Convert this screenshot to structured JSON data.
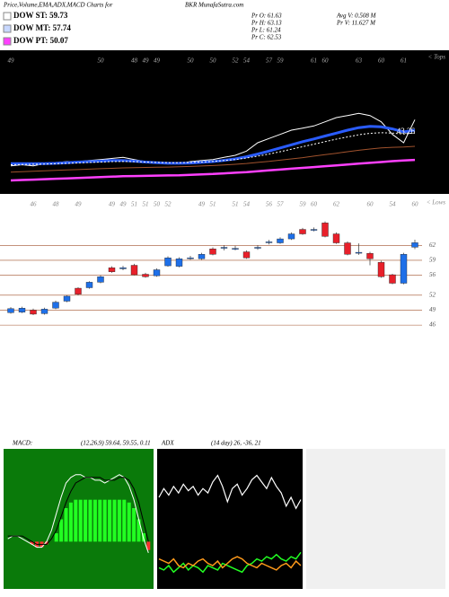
{
  "header": {
    "title": "Price,Volume,EMA,ADX,MACD Charts for",
    "symbol": "BKR MunafaSutra.com",
    "legend": [
      {
        "name": "DOW ST: 59.73",
        "color": "#ffffff"
      },
      {
        "name": "DOW MT: 57.74",
        "color": "#c8d8ff"
      },
      {
        "name": "DOW PT: 50.07",
        "color": "#ff40ff"
      }
    ],
    "stats": [
      "Pr  O: 61.63",
      "Pr  H: 63.13",
      "Pr  L: 61.24",
      "Pr  C: 62.53",
      "Avg V: 0.508  M",
      "Pr  V: 11.627 M"
    ]
  },
  "chart_data": [
    {
      "type": "line",
      "name": "ema-panel",
      "label": "43.26",
      "tops_label": "< Tops",
      "top_labels": [
        "49",
        null,
        null,
        null,
        null,
        null,
        null,
        null,
        "50",
        null,
        null,
        "48",
        "49",
        "49",
        null,
        null,
        "50",
        null,
        "50",
        null,
        "52",
        "54",
        null,
        "57",
        "59",
        null,
        null,
        "61",
        "60",
        null,
        null,
        "63",
        null,
        "60",
        null,
        "61",
        null
      ],
      "ylim": [
        20,
        80
      ],
      "series": [
        {
          "name": "price",
          "color": "#ffffff",
          "dash": false,
          "width": 1,
          "values": [
            33,
            33.5,
            33,
            34,
            34.5,
            35,
            35,
            35.5,
            36,
            36.5,
            37,
            36,
            35,
            34.5,
            34,
            34,
            35,
            35.5,
            36,
            37,
            38,
            40,
            44,
            46,
            48,
            50,
            51,
            52,
            54,
            56,
            57,
            58,
            57,
            54,
            48,
            44,
            55
          ]
        },
        {
          "name": "ema-short",
          "color": "#2a5cff",
          "dash": false,
          "width": 3,
          "values": [
            34,
            34,
            34,
            34,
            34.2,
            34.5,
            34.8,
            35,
            35.2,
            35.5,
            35.5,
            35.2,
            34.8,
            34.5,
            34.2,
            34.2,
            34.3,
            34.6,
            35,
            35.6,
            36.3,
            37.3,
            38.6,
            40,
            41.5,
            43,
            44.5,
            45.8,
            47.2,
            48.6,
            50,
            51.2,
            51.8,
            51.6,
            50.6,
            49.2,
            50
          ]
        },
        {
          "name": "ema-mid",
          "color": "#ffffff",
          "dash": true,
          "width": 1,
          "values": [
            33.5,
            33.6,
            33.7,
            33.8,
            34,
            34.2,
            34.4,
            34.6,
            34.8,
            35,
            35.1,
            35,
            34.8,
            34.6,
            34.5,
            34.5,
            34.6,
            34.8,
            35.1,
            35.5,
            36,
            36.7,
            37.6,
            38.6,
            39.7,
            40.9,
            42.1,
            43.3,
            44.5,
            45.7,
            46.8,
            47.8,
            48.5,
            48.8,
            48.6,
            48.2,
            48.6
          ]
        },
        {
          "name": "ema-long",
          "color": "#a0522d",
          "dash": false,
          "width": 1,
          "values": [
            30,
            30.2,
            30.4,
            30.6,
            30.8,
            31,
            31.2,
            31.4,
            31.6,
            31.8,
            32,
            32.1,
            32.2,
            32.3,
            32.4,
            32.5,
            32.7,
            32.9,
            33.1,
            33.4,
            33.7,
            34.1,
            34.6,
            35.1,
            35.7,
            36.3,
            36.9,
            37.6,
            38.3,
            39,
            39.7,
            40.4,
            41,
            41.5,
            41.8,
            42,
            42.3
          ]
        },
        {
          "name": "ema-pt",
          "color": "#ff40ff",
          "dash": false,
          "width": 2.5,
          "values": [
            26,
            26.2,
            26.4,
            26.6,
            26.8,
            27,
            27.2,
            27.4,
            27.6,
            27.8,
            28,
            28.1,
            28.2,
            28.3,
            28.4,
            28.5,
            28.7,
            28.9,
            29.1,
            29.4,
            29.7,
            30,
            30.4,
            30.8,
            31.2,
            31.6,
            32,
            32.4,
            32.8,
            33.2,
            33.6,
            34,
            34.4,
            34.8,
            35.2,
            35.5,
            35.8
          ]
        }
      ]
    },
    {
      "type": "candlestick",
      "name": "price-panel",
      "lows_label": "< Lows",
      "low_labels": [
        null,
        null,
        "46",
        null,
        "48",
        null,
        "49",
        null,
        null,
        "49",
        "49",
        "51",
        "51",
        "50",
        "52",
        null,
        null,
        "49",
        "51",
        null,
        "51",
        "54",
        null,
        "56",
        "57",
        null,
        "59",
        "60",
        null,
        "62",
        null,
        null,
        "60",
        null,
        "54",
        null,
        "60"
      ],
      "ylim": [
        43.5,
        68
      ],
      "yticks": [
        62,
        59,
        56,
        52,
        49,
        46
      ],
      "up_color": "#1e6fe8",
      "down_color": "#e8202a",
      "candles": [
        {
          "open": 48.5,
          "high": 49.6,
          "low": 48.3,
          "close": 49.3
        },
        {
          "open": 48.6,
          "high": 49.7,
          "low": 48.4,
          "close": 49.4
        },
        {
          "open": 49.0,
          "high": 49.3,
          "low": 48.0,
          "close": 48.2
        },
        {
          "open": 48.3,
          "high": 49.5,
          "low": 48.1,
          "close": 49.2
        },
        {
          "open": 49.4,
          "high": 50.9,
          "low": 49.2,
          "close": 50.6
        },
        {
          "open": 50.8,
          "high": 52.0,
          "low": 50.6,
          "close": 51.8
        },
        {
          "open": 53.4,
          "high": 53.6,
          "low": 52.0,
          "close": 52.2
        },
        {
          "open": 53.5,
          "high": 54.8,
          "low": 53.3,
          "close": 54.6
        },
        {
          "open": 54.6,
          "high": 56.0,
          "low": 54.4,
          "close": 55.7
        },
        {
          "open": 57.5,
          "high": 57.8,
          "low": 56.5,
          "close": 56.7
        },
        {
          "open": 57.3,
          "high": 57.9,
          "low": 57.0,
          "close": 57.5
        },
        {
          "open": 58.0,
          "high": 58.3,
          "low": 56.0,
          "close": 56.1
        },
        {
          "open": 56.2,
          "high": 56.5,
          "low": 55.5,
          "close": 55.7
        },
        {
          "open": 55.9,
          "high": 57.4,
          "low": 55.7,
          "close": 57.1
        },
        {
          "open": 57.9,
          "high": 59.8,
          "low": 57.7,
          "close": 59.5
        },
        {
          "open": 57.8,
          "high": 59.6,
          "low": 57.6,
          "close": 59.3
        },
        {
          "open": 59.4,
          "high": 59.9,
          "low": 59.1,
          "close": 59.5
        },
        {
          "open": 59.3,
          "high": 60.5,
          "low": 59.1,
          "close": 60.2
        },
        {
          "open": 61.3,
          "high": 61.6,
          "low": 60.0,
          "close": 60.2
        },
        {
          "open": 61.5,
          "high": 62.0,
          "low": 61.0,
          "close": 61.6
        },
        {
          "open": 61.3,
          "high": 61.9,
          "low": 61.0,
          "close": 61.4
        },
        {
          "open": 60.7,
          "high": 61.0,
          "low": 59.3,
          "close": 59.5
        },
        {
          "open": 61.5,
          "high": 62.0,
          "low": 61.1,
          "close": 61.6
        },
        {
          "open": 62.6,
          "high": 63.1,
          "low": 62.2,
          "close": 62.7
        },
        {
          "open": 62.5,
          "high": 63.6,
          "low": 62.3,
          "close": 63.3
        },
        {
          "open": 63.3,
          "high": 64.6,
          "low": 63.1,
          "close": 64.3
        },
        {
          "open": 65.2,
          "high": 65.5,
          "low": 64.1,
          "close": 64.3
        },
        {
          "open": 65.1,
          "high": 65.6,
          "low": 64.8,
          "close": 65.2
        },
        {
          "open": 66.5,
          "high": 66.8,
          "low": 63.6,
          "close": 63.8
        },
        {
          "open": 64.3,
          "high": 64.6,
          "low": 62.3,
          "close": 62.5
        },
        {
          "open": 62.5,
          "high": 62.8,
          "low": 60.0,
          "close": 60.2
        },
        {
          "open": 60.5,
          "high": 62.4,
          "low": 60.1,
          "close": 60.6
        },
        {
          "open": 60.4,
          "high": 60.7,
          "low": 58.0,
          "close": 59.3
        },
        {
          "open": 58.6,
          "high": 58.9,
          "low": 55.5,
          "close": 55.7
        },
        {
          "open": 56.1,
          "high": 56.3,
          "low": 54.2,
          "close": 54.4
        },
        {
          "open": 54.4,
          "high": 60.5,
          "low": 54.2,
          "close": 60.2
        },
        {
          "open": 61.63,
          "high": 63.13,
          "low": 61.24,
          "close": 62.53
        }
      ]
    },
    {
      "type": "macd",
      "title": "MACD:",
      "subtitle": "(12,26,9) 59.64, 59.55, 0.11",
      "ylim": [
        -1.5,
        3
      ],
      "bar_color": "#22ff22",
      "histogram": [
        0,
        0,
        0,
        0,
        0,
        -0.1,
        -0.2,
        -0.2,
        -0.1,
        0,
        0.3,
        0.8,
        1.2,
        1.4,
        1.5,
        1.5,
        1.5,
        1.5,
        1.5,
        1.5,
        1.5,
        1.5,
        1.5,
        1.5,
        1.5,
        1.4,
        1.2,
        0.8,
        0.3,
        -0.3
      ],
      "series": [
        {
          "name": "macd",
          "color": "#ffffff",
          "values": [
            0.1,
            0.2,
            0.2,
            0.1,
            0,
            -0.1,
            -0.2,
            -0.2,
            0,
            0.4,
            1,
            1.6,
            2.1,
            2.3,
            2.4,
            2.4,
            2.3,
            2.3,
            2.2,
            2.2,
            2.1,
            2.2,
            2.3,
            2.4,
            2.3,
            2,
            1.5,
            0.8,
            0.1,
            -0.4
          ]
        },
        {
          "name": "signal",
          "color": "#000000",
          "values": [
            0.2,
            0.2,
            0.2,
            0.2,
            0.1,
            0,
            -0.1,
            -0.1,
            -0.1,
            0.1,
            0.4,
            0.9,
            1.4,
            1.8,
            2.1,
            2.2,
            2.3,
            2.3,
            2.3,
            2.3,
            2.2,
            2.2,
            2.2,
            2.3,
            2.3,
            2.2,
            1.9,
            1.4,
            0.7,
            0
          ]
        }
      ]
    },
    {
      "type": "adx",
      "title": "ADX",
      "subtitle": "(14 day) 26, -36, 21",
      "ylim": [
        0,
        60
      ],
      "series": [
        {
          "name": "adx",
          "color": "#ffffff",
          "values": [
            40,
            44,
            41,
            45,
            42,
            46,
            43,
            45,
            41,
            44,
            42,
            47,
            50,
            45,
            38,
            44,
            46,
            41,
            44,
            48,
            50,
            47,
            44,
            49,
            45,
            42,
            36,
            40,
            35,
            39
          ]
        },
        {
          "name": "plus-di",
          "color": "#22ff22",
          "values": [
            8,
            7,
            9,
            6,
            8,
            10,
            7,
            9,
            8,
            6,
            9,
            8,
            7,
            10,
            9,
            8,
            7,
            6,
            9,
            10,
            12,
            11,
            13,
            12,
            14,
            12,
            11,
            13,
            12,
            15
          ]
        },
        {
          "name": "minus-di",
          "color": "#ff9a1a",
          "values": [
            12,
            11,
            10,
            12,
            9,
            8,
            10,
            9,
            11,
            12,
            10,
            9,
            11,
            8,
            10,
            12,
            13,
            12,
            10,
            9,
            8,
            10,
            9,
            8,
            7,
            9,
            10,
            8,
            11,
            9
          ]
        }
      ]
    }
  ]
}
